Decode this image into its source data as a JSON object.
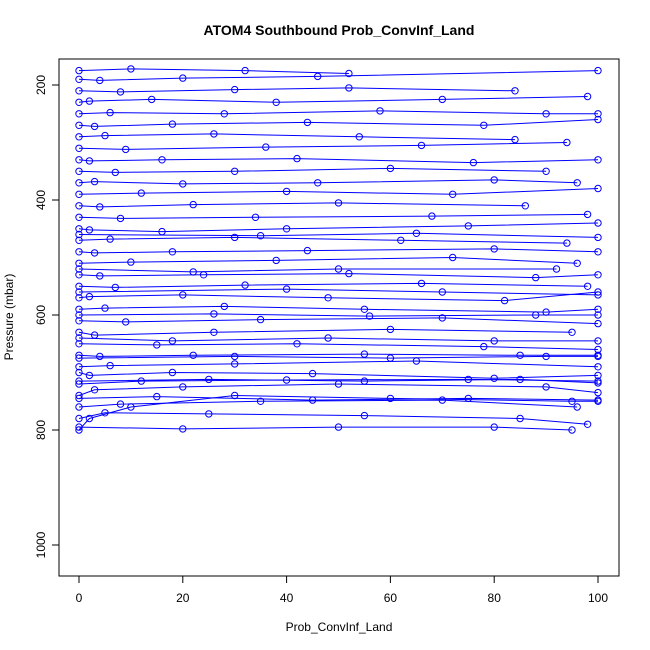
{
  "chart_data": {
    "type": "line",
    "title": "ATOM4 Southbound Prob_ConvInf_Land",
    "xlabel": "Prob_ConvInf_Land",
    "ylabel": "Pressure (mbar)",
    "xlim": [
      0,
      100
    ],
    "ylim": [
      1050,
      160
    ],
    "y_inverted": true,
    "xticks": [
      0,
      20,
      40,
      60,
      80,
      100
    ],
    "yticks": [
      200,
      400,
      600,
      800,
      1000
    ],
    "xtick_labels": [
      "0",
      "20",
      "40",
      "60",
      "80",
      "100"
    ],
    "ytick_labels": [
      "200",
      "400",
      "600",
      "800",
      "1000"
    ],
    "grid": false,
    "color": "#0000ff",
    "marker": "open-circle",
    "series": [
      {
        "values": [
          [
            0,
            800
          ],
          [
            2,
            780
          ],
          [
            10,
            760
          ],
          [
            30,
            740
          ],
          [
            60,
            745
          ],
          [
            95,
            750
          ],
          [
            100,
            750
          ]
        ]
      },
      {
        "values": [
          [
            0,
            780
          ],
          [
            5,
            770
          ],
          [
            25,
            772
          ],
          [
            55,
            775
          ],
          [
            85,
            780
          ],
          [
            98,
            790
          ]
        ]
      },
      {
        "values": [
          [
            0,
            760
          ],
          [
            8,
            755
          ],
          [
            35,
            750
          ],
          [
            70,
            748
          ],
          [
            96,
            760
          ]
        ]
      },
      {
        "values": [
          [
            0,
            740
          ],
          [
            3,
            730
          ],
          [
            20,
            725
          ],
          [
            50,
            720
          ],
          [
            90,
            725
          ],
          [
            100,
            735
          ]
        ]
      },
      {
        "values": [
          [
            0,
            720
          ],
          [
            12,
            715
          ],
          [
            40,
            713
          ],
          [
            75,
            712
          ],
          [
            100,
            715
          ]
        ]
      },
      {
        "values": [
          [
            0,
            700
          ],
          [
            2,
            705
          ],
          [
            18,
            700
          ],
          [
            45,
            702
          ],
          [
            80,
            710
          ],
          [
            100,
            705
          ]
        ]
      },
      {
        "values": [
          [
            0,
            690
          ],
          [
            6,
            688
          ],
          [
            30,
            685
          ],
          [
            65,
            680
          ],
          [
            100,
            690
          ]
        ]
      },
      {
        "values": [
          [
            0,
            670
          ],
          [
            4,
            672
          ],
          [
            22,
            670
          ],
          [
            55,
            668
          ],
          [
            85,
            670
          ],
          [
            100,
            670
          ]
        ]
      },
      {
        "values": [
          [
            0,
            650
          ],
          [
            15,
            652
          ],
          [
            42,
            650
          ],
          [
            78,
            655
          ],
          [
            100,
            660
          ]
        ]
      },
      {
        "values": [
          [
            0,
            630
          ],
          [
            3,
            635
          ],
          [
            26,
            630
          ],
          [
            60,
            625
          ],
          [
            95,
            630
          ]
        ]
      },
      {
        "values": [
          [
            0,
            610
          ],
          [
            9,
            612
          ],
          [
            35,
            608
          ],
          [
            70,
            605
          ],
          [
            100,
            615
          ]
        ]
      },
      {
        "values": [
          [
            0,
            590
          ],
          [
            5,
            588
          ],
          [
            28,
            585
          ],
          [
            55,
            590
          ],
          [
            90,
            595
          ],
          [
            100,
            590
          ]
        ]
      },
      {
        "values": [
          [
            0,
            570
          ],
          [
            2,
            568
          ],
          [
            20,
            565
          ],
          [
            48,
            570
          ],
          [
            82,
            575
          ],
          [
            100,
            560
          ]
        ]
      },
      {
        "values": [
          [
            0,
            550
          ],
          [
            7,
            552
          ],
          [
            32,
            548
          ],
          [
            66,
            545
          ],
          [
            98,
            550
          ]
        ]
      },
      {
        "values": [
          [
            0,
            530
          ],
          [
            4,
            532
          ],
          [
            24,
            530
          ],
          [
            52,
            528
          ],
          [
            88,
            535
          ],
          [
            100,
            530
          ]
        ]
      },
      {
        "values": [
          [
            0,
            510
          ],
          [
            10,
            508
          ],
          [
            38,
            505
          ],
          [
            72,
            500
          ],
          [
            96,
            510
          ]
        ]
      },
      {
        "values": [
          [
            0,
            490
          ],
          [
            3,
            492
          ],
          [
            18,
            490
          ],
          [
            44,
            488
          ],
          [
            80,
            485
          ],
          [
            100,
            490
          ]
        ]
      },
      {
        "values": [
          [
            0,
            470
          ],
          [
            6,
            468
          ],
          [
            30,
            465
          ],
          [
            62,
            470
          ],
          [
            94,
            475
          ]
        ]
      },
      {
        "values": [
          [
            0,
            450
          ],
          [
            2,
            452
          ],
          [
            16,
            455
          ],
          [
            40,
            450
          ],
          [
            75,
            445
          ],
          [
            100,
            440
          ]
        ]
      },
      {
        "values": [
          [
            0,
            430
          ],
          [
            8,
            432
          ],
          [
            34,
            430
          ],
          [
            68,
            428
          ],
          [
            98,
            425
          ]
        ]
      },
      {
        "values": [
          [
            0,
            410
          ],
          [
            4,
            412
          ],
          [
            22,
            408
          ],
          [
            50,
            405
          ],
          [
            86,
            410
          ]
        ]
      },
      {
        "values": [
          [
            0,
            390
          ],
          [
            12,
            388
          ],
          [
            40,
            385
          ],
          [
            72,
            390
          ],
          [
            100,
            380
          ]
        ]
      },
      {
        "values": [
          [
            0,
            370
          ],
          [
            3,
            368
          ],
          [
            20,
            372
          ],
          [
            46,
            370
          ],
          [
            80,
            365
          ],
          [
            96,
            370
          ]
        ]
      },
      {
        "values": [
          [
            0,
            350
          ],
          [
            7,
            352
          ],
          [
            30,
            350
          ],
          [
            60,
            345
          ],
          [
            90,
            350
          ]
        ]
      },
      {
        "values": [
          [
            0,
            330
          ],
          [
            2,
            332
          ],
          [
            16,
            330
          ],
          [
            42,
            328
          ],
          [
            76,
            335
          ],
          [
            100,
            330
          ]
        ]
      },
      {
        "values": [
          [
            0,
            310
          ],
          [
            9,
            312
          ],
          [
            36,
            308
          ],
          [
            66,
            305
          ],
          [
            94,
            300
          ]
        ]
      },
      {
        "values": [
          [
            0,
            290
          ],
          [
            5,
            288
          ],
          [
            26,
            285
          ],
          [
            54,
            290
          ],
          [
            84,
            295
          ]
        ]
      },
      {
        "values": [
          [
            0,
            270
          ],
          [
            3,
            272
          ],
          [
            18,
            268
          ],
          [
            44,
            265
          ],
          [
            78,
            270
          ],
          [
            100,
            260
          ]
        ]
      },
      {
        "values": [
          [
            0,
            250
          ],
          [
            6,
            248
          ],
          [
            28,
            250
          ],
          [
            58,
            245
          ],
          [
            90,
            250
          ],
          [
            100,
            250
          ]
        ]
      },
      {
        "values": [
          [
            0,
            230
          ],
          [
            2,
            228
          ],
          [
            14,
            225
          ],
          [
            38,
            230
          ],
          [
            70,
            225
          ],
          [
            98,
            220
          ]
        ]
      },
      {
        "values": [
          [
            0,
            210
          ],
          [
            8,
            212
          ],
          [
            30,
            208
          ],
          [
            52,
            205
          ],
          [
            84,
            210
          ]
        ]
      },
      {
        "values": [
          [
            0,
            190
          ],
          [
            4,
            192
          ],
          [
            20,
            188
          ],
          [
            46,
            185
          ],
          [
            100,
            175
          ]
        ]
      },
      {
        "values": [
          [
            0,
            175
          ],
          [
            10,
            172
          ],
          [
            32,
            175
          ],
          [
            52,
            180
          ]
        ]
      },
      {
        "values": [
          [
            0,
            795
          ],
          [
            20,
            798
          ],
          [
            50,
            795
          ],
          [
            80,
            795
          ],
          [
            95,
            800
          ]
        ]
      },
      {
        "values": [
          [
            0,
            675
          ],
          [
            30,
            672
          ],
          [
            60,
            675
          ],
          [
            90,
            672
          ],
          [
            100,
            672
          ]
        ]
      },
      {
        "values": [
          [
            0,
            715
          ],
          [
            25,
            712
          ],
          [
            55,
            715
          ],
          [
            85,
            712
          ],
          [
            100,
            718
          ]
        ]
      },
      {
        "values": [
          [
            0,
            745
          ],
          [
            15,
            742
          ],
          [
            45,
            748
          ],
          [
            75,
            745
          ],
          [
            100,
            748
          ]
        ]
      },
      {
        "values": [
          [
            0,
            560
          ],
          [
            40,
            555
          ],
          [
            70,
            560
          ],
          [
            100,
            565
          ]
        ]
      },
      {
        "values": [
          [
            0,
            520
          ],
          [
            22,
            525
          ],
          [
            50,
            520
          ],
          [
            92,
            520
          ]
        ]
      },
      {
        "values": [
          [
            0,
            640
          ],
          [
            18,
            645
          ],
          [
            48,
            640
          ],
          [
            80,
            645
          ],
          [
            100,
            645
          ]
        ]
      },
      {
        "values": [
          [
            0,
            600
          ],
          [
            26,
            598
          ],
          [
            56,
            602
          ],
          [
            88,
            600
          ],
          [
            100,
            600
          ]
        ]
      },
      {
        "values": [
          [
            0,
            460
          ],
          [
            35,
            462
          ],
          [
            65,
            458
          ],
          [
            100,
            465
          ]
        ]
      }
    ]
  }
}
